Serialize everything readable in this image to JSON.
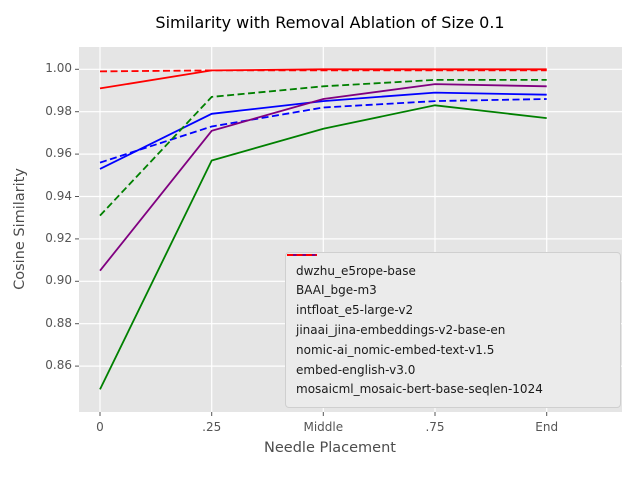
{
  "chart_data": {
    "type": "line",
    "title": "Similarity with Removal Ablation of Size 0.1",
    "xlabel": "Needle Placement",
    "ylabel": "Cosine Similarity",
    "x_tick_labels": [
      "0",
      ".25",
      "Middle",
      ".75",
      "End"
    ],
    "y_ticks": [
      0.86,
      0.88,
      0.9,
      0.92,
      0.94,
      0.96,
      0.98,
      1.0
    ],
    "ylim": [
      0.838,
      1.01
    ],
    "grid": true,
    "legend_position": "lower right",
    "plot_background_color": "#e5e5e5",
    "grid_color": "#ffffff",
    "tick_color": "#555555",
    "series": [
      {
        "name": "dwzhu_e5rope-base",
        "color": "#008000",
        "style": "solid",
        "values": [
          0.849,
          0.957,
          0.972,
          0.983,
          0.977
        ]
      },
      {
        "name": "BAAI_bge-m3",
        "color": "#0000ff",
        "style": "solid",
        "values": [
          0.953,
          0.979,
          0.985,
          0.989,
          0.988
        ]
      },
      {
        "name": "intfloat_e5-large-v2",
        "color": "#0000ff",
        "style": "dashed",
        "values": [
          0.956,
          0.973,
          0.982,
          0.985,
          0.986
        ]
      },
      {
        "name": "jinaai_jina-embeddings-v2-base-en",
        "color": "#ff0000",
        "style": "solid",
        "values": [
          0.991,
          0.9995,
          1.0,
          1.0,
          1.0
        ]
      },
      {
        "name": "nomic-ai_nomic-embed-text-v1.5",
        "color": "#008000",
        "style": "dashed",
        "values": [
          0.931,
          0.987,
          0.992,
          0.995,
          0.995
        ]
      },
      {
        "name": "embed-english-v3.0",
        "color": "#800080",
        "style": "solid",
        "values": [
          0.905,
          0.971,
          0.986,
          0.993,
          0.992
        ]
      },
      {
        "name": "mosaicml_mosaic-bert-base-seqlen-1024",
        "color": "#ff0000",
        "style": "dashed",
        "values": [
          0.999,
          0.9995,
          0.9995,
          0.9995,
          0.9995
        ]
      }
    ]
  }
}
